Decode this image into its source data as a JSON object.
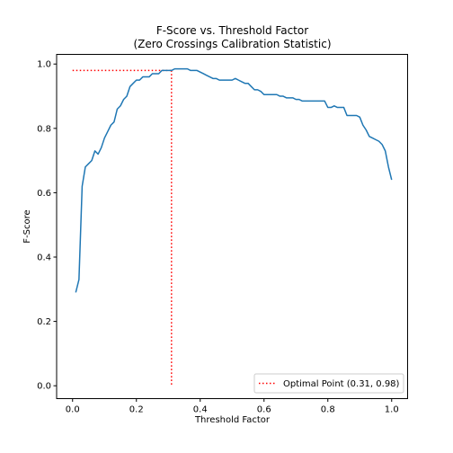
{
  "chart_data": {
    "type": "line",
    "title": [
      "F-Score vs. Threshold Factor",
      "(Zero Crossings Calibration Statistic)"
    ],
    "xlabel": "Threshold Factor",
    "ylabel": "F-Score",
    "xlim": [
      -0.05,
      1.05
    ],
    "ylim": [
      -0.04,
      1.03
    ],
    "xticks": [
      0.0,
      0.2,
      0.4,
      0.6,
      0.8,
      1.0
    ],
    "xtick_labels": [
      "0.0",
      "0.2",
      "0.4",
      "0.6",
      "0.8",
      "1.0"
    ],
    "yticks": [
      0.0,
      0.2,
      0.4,
      0.6,
      0.8,
      1.0
    ],
    "ytick_labels": [
      "0.0",
      "0.2",
      "0.4",
      "0.6",
      "0.8",
      "1.0"
    ],
    "grid": false,
    "legend_position": "lower-right",
    "series": [
      {
        "color": "#1f77b4",
        "style": "solid",
        "x": [
          0.01,
          0.02,
          0.03,
          0.04,
          0.05,
          0.06,
          0.07,
          0.08,
          0.09,
          0.1,
          0.11,
          0.12,
          0.13,
          0.14,
          0.15,
          0.16,
          0.17,
          0.18,
          0.19,
          0.2,
          0.21,
          0.22,
          0.23,
          0.24,
          0.25,
          0.26,
          0.27,
          0.28,
          0.29,
          0.3,
          0.31,
          0.32,
          0.33,
          0.34,
          0.35,
          0.36,
          0.37,
          0.38,
          0.39,
          0.4,
          0.41,
          0.42,
          0.43,
          0.44,
          0.45,
          0.46,
          0.47,
          0.48,
          0.49,
          0.5,
          0.51,
          0.52,
          0.53,
          0.54,
          0.55,
          0.56,
          0.57,
          0.58,
          0.59,
          0.6,
          0.61,
          0.62,
          0.63,
          0.64,
          0.65,
          0.66,
          0.67,
          0.68,
          0.69,
          0.7,
          0.71,
          0.72,
          0.73,
          0.74,
          0.75,
          0.76,
          0.77,
          0.78,
          0.79,
          0.8,
          0.81,
          0.82,
          0.83,
          0.84,
          0.85,
          0.86,
          0.87,
          0.88,
          0.89,
          0.9,
          0.91,
          0.92,
          0.93,
          0.94,
          0.95,
          0.96,
          0.97,
          0.98,
          0.99,
          1.0
        ],
        "y": [
          0.29,
          0.33,
          0.62,
          0.68,
          0.69,
          0.7,
          0.73,
          0.72,
          0.74,
          0.77,
          0.79,
          0.81,
          0.82,
          0.86,
          0.87,
          0.89,
          0.9,
          0.93,
          0.94,
          0.95,
          0.95,
          0.96,
          0.96,
          0.96,
          0.97,
          0.97,
          0.97,
          0.98,
          0.98,
          0.98,
          0.98,
          0.985,
          0.985,
          0.985,
          0.985,
          0.985,
          0.98,
          0.98,
          0.98,
          0.975,
          0.97,
          0.965,
          0.96,
          0.955,
          0.955,
          0.95,
          0.95,
          0.95,
          0.95,
          0.95,
          0.955,
          0.95,
          0.945,
          0.94,
          0.94,
          0.93,
          0.92,
          0.92,
          0.915,
          0.905,
          0.905,
          0.905,
          0.905,
          0.905,
          0.9,
          0.9,
          0.895,
          0.895,
          0.895,
          0.89,
          0.89,
          0.885,
          0.885,
          0.885,
          0.885,
          0.885,
          0.885,
          0.885,
          0.885,
          0.865,
          0.865,
          0.87,
          0.865,
          0.865,
          0.865,
          0.84,
          0.84,
          0.84,
          0.84,
          0.835,
          0.81,
          0.795,
          0.775,
          0.77,
          0.765,
          0.76,
          0.75,
          0.73,
          0.68,
          0.64
        ]
      }
    ],
    "optimal_point": {
      "x": 0.31,
      "y": 0.98,
      "color": "#ff0000",
      "style": "dotted",
      "legend_label": "Optimal Point (0.31, 0.98)"
    }
  }
}
